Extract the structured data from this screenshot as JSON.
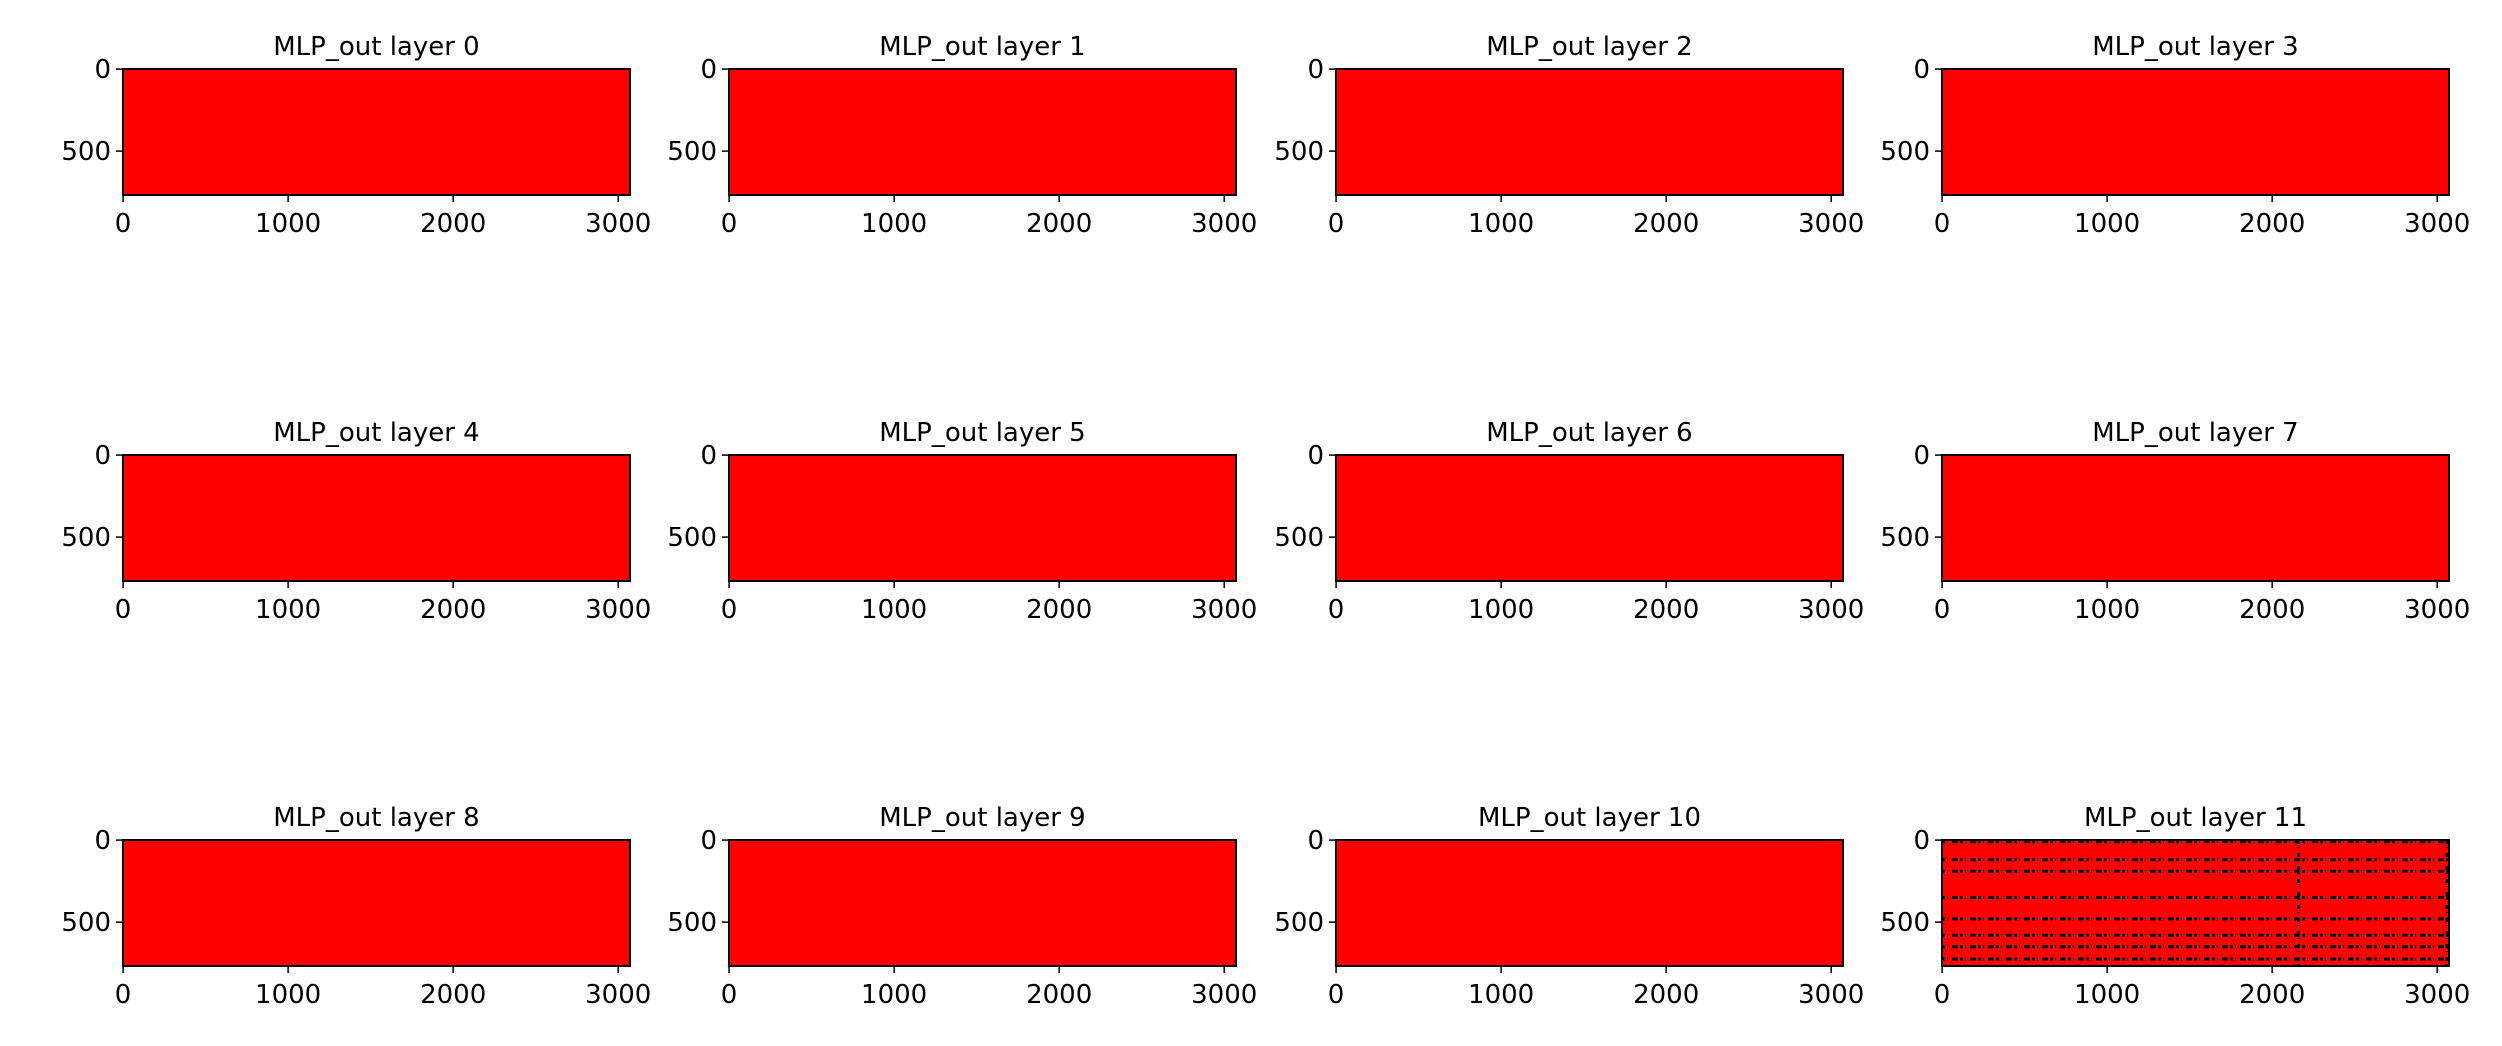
{
  "chart_data": [
    {
      "type": "image",
      "title": "MLP_out layer 0",
      "color": "#ff0000",
      "xlim": [
        -0.5,
        3071.5
      ],
      "ylim": [
        767.5,
        -0.5
      ],
      "xticks": [
        0,
        1000,
        2000,
        3000
      ],
      "yticks": [
        0,
        500
      ]
    },
    {
      "type": "image",
      "title": "MLP_out layer 1",
      "color": "#ff0000",
      "xlim": [
        -0.5,
        3071.5
      ],
      "ylim": [
        767.5,
        -0.5
      ],
      "xticks": [
        0,
        1000,
        2000,
        3000
      ],
      "yticks": [
        0,
        500
      ]
    },
    {
      "type": "image",
      "title": "MLP_out layer 2",
      "color": "#ff0000",
      "xlim": [
        -0.5,
        3071.5
      ],
      "ylim": [
        767.5,
        -0.5
      ],
      "xticks": [
        0,
        1000,
        2000,
        3000
      ],
      "yticks": [
        0,
        500
      ]
    },
    {
      "type": "image",
      "title": "MLP_out layer 3",
      "color": "#ff0000",
      "xlim": [
        -0.5,
        3071.5
      ],
      "ylim": [
        767.5,
        -0.5
      ],
      "xticks": [
        0,
        1000,
        2000,
        3000
      ],
      "yticks": [
        0,
        500
      ]
    },
    {
      "type": "image",
      "title": "MLP_out layer 4",
      "color": "#ff0000",
      "xlim": [
        -0.5,
        3071.5
      ],
      "ylim": [
        767.5,
        -0.5
      ],
      "xticks": [
        0,
        1000,
        2000,
        3000
      ],
      "yticks": [
        0,
        500
      ]
    },
    {
      "type": "image",
      "title": "MLP_out layer 5",
      "color": "#ff0000",
      "xlim": [
        -0.5,
        3071.5
      ],
      "ylim": [
        767.5,
        -0.5
      ],
      "xticks": [
        0,
        1000,
        2000,
        3000
      ],
      "yticks": [
        0,
        500
      ]
    },
    {
      "type": "image",
      "title": "MLP_out layer 6",
      "color": "#ff0000",
      "xlim": [
        -0.5,
        3071.5
      ],
      "ylim": [
        767.5,
        -0.5
      ],
      "xticks": [
        0,
        1000,
        2000,
        3000
      ],
      "yticks": [
        0,
        500
      ]
    },
    {
      "type": "image",
      "title": "MLP_out layer 7",
      "color": "#ff0000",
      "xlim": [
        -0.5,
        3071.5
      ],
      "ylim": [
        767.5,
        -0.5
      ],
      "xticks": [
        0,
        1000,
        2000,
        3000
      ],
      "yticks": [
        0,
        500
      ]
    },
    {
      "type": "image",
      "title": "MLP_out layer 8",
      "color": "#ff0000",
      "xlim": [
        -0.5,
        3071.5
      ],
      "ylim": [
        767.5,
        -0.5
      ],
      "xticks": [
        0,
        1000,
        2000,
        3000
      ],
      "yticks": [
        0,
        500
      ]
    },
    {
      "type": "image",
      "title": "MLP_out layer 9",
      "color": "#ff0000",
      "xlim": [
        -0.5,
        3071.5
      ],
      "ylim": [
        767.5,
        -0.5
      ],
      "xticks": [
        0,
        1000,
        2000,
        3000
      ],
      "yticks": [
        0,
        500
      ]
    },
    {
      "type": "image",
      "title": "MLP_out layer 10",
      "color": "#ff0000",
      "xlim": [
        -0.5,
        3071.5
      ],
      "ylim": [
        767.5,
        -0.5
      ],
      "xticks": [
        0,
        1000,
        2000,
        3000
      ],
      "yticks": [
        0,
        500
      ]
    },
    {
      "type": "image",
      "title": "MLP_out layer 11",
      "color": "#ff0000",
      "dark_color": "#000000",
      "dark_rows": [
        10,
        120,
        190,
        350,
        480,
        580,
        650,
        725
      ],
      "dark_columns": [
        2160,
        3060
      ],
      "xlim": [
        -0.5,
        3071.5
      ],
      "ylim": [
        767.5,
        -0.5
      ],
      "xticks": [
        0,
        1000,
        2000,
        3000
      ],
      "yticks": [
        0,
        500
      ]
    }
  ]
}
